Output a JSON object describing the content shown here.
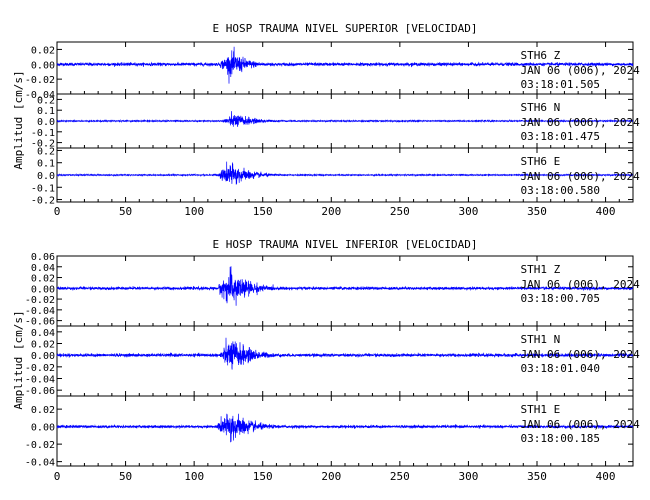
{
  "chart_data": [
    {
      "type": "line",
      "title": "E HOSP TRAUMA NIVEL SUPERIOR [VELOCIDAD]",
      "ylabel": "Amplitud [cm/s]",
      "xlim": [
        0,
        420
      ],
      "xticks": [
        0,
        50,
        100,
        150,
        200,
        250,
        300,
        350,
        400
      ],
      "line_color": "#0000ff",
      "series": [
        {
          "station": "STH6",
          "component": "Z",
          "date": "JAN 06 (006), 2024",
          "time": "03:18:01.505",
          "ylim": [
            -0.04,
            0.03
          ],
          "yticks": [
            -0.04,
            -0.02,
            0.0,
            0.02
          ],
          "yticklabels": [
            "-0.04",
            "-0.02",
            "0.00",
            "0.02"
          ],
          "onset_s": 119,
          "peak_s": 128,
          "peak_amplitude": 0.03,
          "noise_amplitude": 0.002,
          "decay_s": 12
        },
        {
          "station": "STH6",
          "component": "N",
          "date": "JAN 06 (006), 2024",
          "time": "03:18:01.475",
          "ylim": [
            -0.25,
            0.25
          ],
          "yticks": [
            -0.2,
            -0.1,
            0.0,
            0.1,
            0.2
          ],
          "yticklabels": [
            "-0.2",
            "-0.1",
            "0.0",
            "0.1",
            "0.2"
          ],
          "onset_s": 121,
          "peak_s": 130,
          "peak_amplitude": 0.12,
          "noise_amplitude": 0.006,
          "decay_s": 14
        },
        {
          "station": "STH6",
          "component": "E",
          "date": "JAN 06 (006), 2024",
          "time": "03:18:00.580",
          "ylim": [
            -0.22,
            0.22
          ],
          "yticks": [
            -0.2,
            -0.1,
            0.0,
            0.1,
            0.2
          ],
          "yticklabels": [
            "-0.2",
            "-0.1",
            "0.0",
            "0.1",
            "0.2"
          ],
          "onset_s": 118,
          "peak_s": 127,
          "peak_amplitude": 0.18,
          "noise_amplitude": 0.005,
          "decay_s": 13
        }
      ]
    },
    {
      "type": "line",
      "title": "E HOSP TRAUMA NIVEL INFERIOR [VELOCIDAD]",
      "ylabel": "Amplitud [cm/s]",
      "xlim": [
        0,
        420
      ],
      "xticks": [
        0,
        50,
        100,
        150,
        200,
        250,
        300,
        350,
        400
      ],
      "line_color": "#0000ff",
      "series": [
        {
          "station": "STH1",
          "component": "Z",
          "date": "JAN 06 (006), 2024",
          "time": "03:18:00.705",
          "ylim": [
            -0.07,
            0.06
          ],
          "yticks": [
            -0.06,
            -0.04,
            -0.02,
            0.0,
            0.02,
            0.04,
            0.06
          ],
          "yticklabels": [
            "-0.06",
            "-0.04",
            "-0.02",
            "0.00",
            "0.02",
            "0.04",
            "0.06"
          ],
          "onset_s": 118,
          "peak_s": 128,
          "peak_amplitude": 0.06,
          "noise_amplitude": 0.0025,
          "decay_s": 13
        },
        {
          "station": "STH1",
          "component": "N",
          "date": "JAN 06 (006), 2024",
          "time": "03:18:01.040",
          "ylim": [
            -0.07,
            0.05
          ],
          "yticks": [
            -0.06,
            -0.04,
            -0.02,
            0.0,
            0.02,
            0.04
          ],
          "yticklabels": [
            "-0.06",
            "-0.04",
            "-0.02",
            "0.00",
            "0.02",
            "0.04"
          ],
          "onset_s": 119,
          "peak_s": 128,
          "peak_amplitude": 0.05,
          "noise_amplitude": 0.0025,
          "decay_s": 14
        },
        {
          "station": "STH1",
          "component": "E",
          "date": "JAN 06 (006), 2024",
          "time": "03:18:00.185",
          "ylim": [
            -0.045,
            0.035
          ],
          "yticks": [
            -0.04,
            -0.02,
            0.0,
            0.02
          ],
          "yticklabels": [
            "-0.04",
            "-0.02",
            "0.00",
            "0.02"
          ],
          "onset_s": 117,
          "peak_s": 127,
          "peak_amplitude": 0.032,
          "noise_amplitude": 0.0015,
          "decay_s": 14
        }
      ]
    }
  ]
}
